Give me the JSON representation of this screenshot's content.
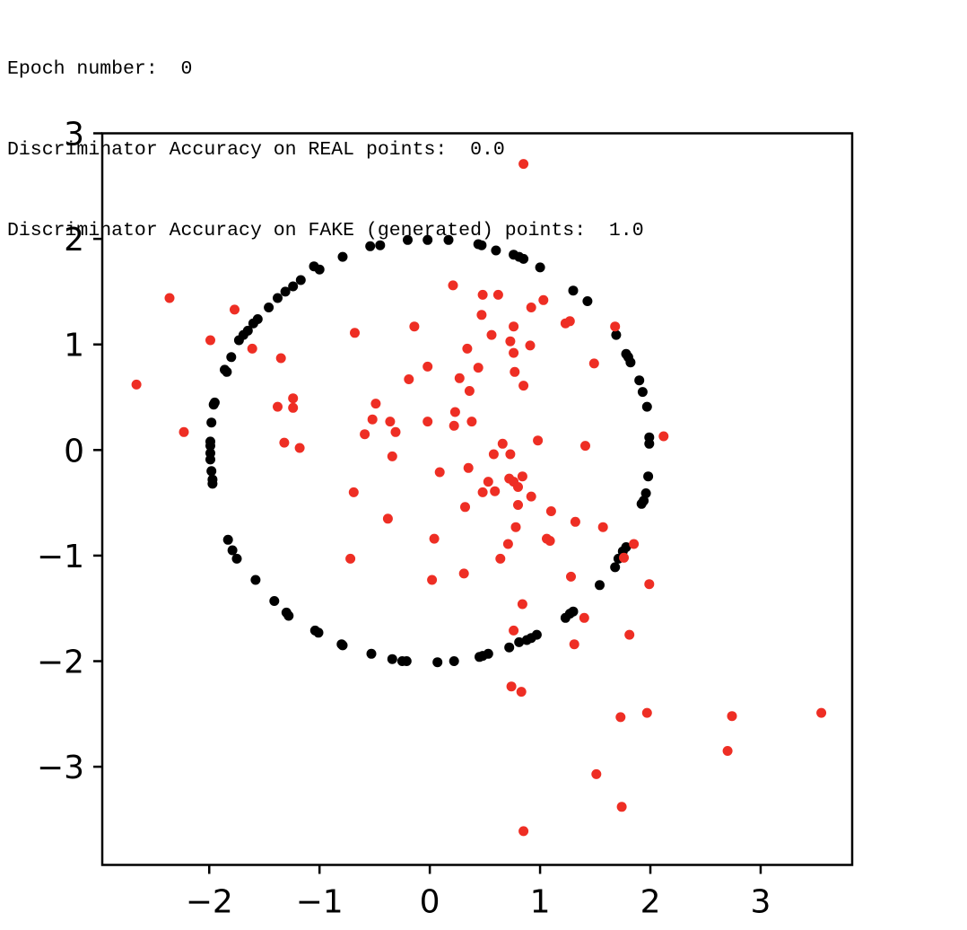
{
  "output_log": [
    "Epoch number:  0",
    "Discriminator Accuracy on REAL points:  0.0",
    "Discriminator Accuracy on FAKE (generated) points:  1.0"
  ],
  "chart_data": {
    "type": "scatter",
    "xlim": [
      -2.97,
      3.83
    ],
    "ylim": [
      -3.93,
      3.0
    ],
    "xticks": [
      -2,
      -1,
      0,
      1,
      2,
      3
    ],
    "yticks": [
      -3,
      -2,
      -1,
      0,
      1,
      2,
      3
    ],
    "xtick_labels": [
      "−2",
      "−1",
      "0",
      "1",
      "2",
      "3"
    ],
    "ytick_labels": [
      "−3",
      "−2",
      "−1",
      "0",
      "1",
      "2",
      "3"
    ],
    "grid": false,
    "series": [
      {
        "color": "#000000",
        "points": [
          [
            -0.2,
            1.99
          ],
          [
            -0.02,
            1.99
          ],
          [
            0.17,
            1.99
          ],
          [
            -0.54,
            1.93
          ],
          [
            -0.45,
            1.94
          ],
          [
            -0.79,
            1.83
          ],
          [
            -1.0,
            1.71
          ],
          [
            -1.05,
            1.74
          ],
          [
            -1.17,
            1.61
          ],
          [
            -1.24,
            1.55
          ],
          [
            -1.31,
            1.5
          ],
          [
            -1.38,
            1.44
          ],
          [
            -1.46,
            1.35
          ],
          [
            -1.56,
            1.24
          ],
          [
            -1.6,
            1.2
          ],
          [
            -1.65,
            1.13
          ],
          [
            -1.69,
            1.09
          ],
          [
            -1.73,
            1.04
          ],
          [
            -1.8,
            0.88
          ],
          [
            -1.86,
            0.76
          ],
          [
            -1.84,
            0.74
          ],
          [
            -1.95,
            0.45
          ],
          [
            -1.96,
            0.43
          ],
          [
            -1.98,
            0.26
          ],
          [
            -1.99,
            0.08
          ],
          [
            -1.99,
            0.04
          ],
          [
            -1.99,
            -0.03
          ],
          [
            -1.99,
            -0.09
          ],
          [
            -1.98,
            -0.2
          ],
          [
            -1.97,
            -0.28
          ],
          [
            -1.97,
            -0.32
          ],
          [
            -1.83,
            -0.85
          ],
          [
            -1.79,
            -0.95
          ],
          [
            -1.75,
            -1.03
          ],
          [
            -1.58,
            -1.23
          ],
          [
            -1.41,
            -1.43
          ],
          [
            -1.3,
            -1.54
          ],
          [
            -1.28,
            -1.57
          ],
          [
            -1.04,
            -1.71
          ],
          [
            -1.01,
            -1.73
          ],
          [
            -0.8,
            -1.84
          ],
          [
            -0.79,
            -1.85
          ],
          [
            -0.53,
            -1.93
          ],
          [
            -0.34,
            -1.98
          ],
          [
            -0.25,
            -2.0
          ],
          [
            -0.21,
            -2.0
          ],
          [
            0.07,
            -2.01
          ],
          [
            0.22,
            -2.0
          ],
          [
            0.45,
            -1.96
          ],
          [
            0.48,
            -1.95
          ],
          [
            0.53,
            -1.93
          ],
          [
            0.72,
            -1.87
          ],
          [
            0.81,
            -1.82
          ],
          [
            0.88,
            -1.8
          ],
          [
            0.92,
            -1.78
          ],
          [
            0.97,
            -1.75
          ],
          [
            1.23,
            -1.59
          ],
          [
            1.27,
            -1.55
          ],
          [
            1.3,
            -1.53
          ],
          [
            1.54,
            -1.28
          ],
          [
            1.68,
            -1.11
          ],
          [
            1.71,
            -1.03
          ],
          [
            1.75,
            -0.96
          ],
          [
            1.78,
            -0.92
          ],
          [
            1.92,
            -0.51
          ],
          [
            1.94,
            -0.48
          ],
          [
            1.96,
            -0.41
          ],
          [
            1.98,
            -0.25
          ],
          [
            1.99,
            0.06
          ],
          [
            1.99,
            0.12
          ],
          [
            1.97,
            0.41
          ],
          [
            1.93,
            0.55
          ],
          [
            1.9,
            0.66
          ],
          [
            1.82,
            0.83
          ],
          [
            1.8,
            0.88
          ],
          [
            1.78,
            0.91
          ],
          [
            1.69,
            1.09
          ],
          [
            1.43,
            1.41
          ],
          [
            1.3,
            1.51
          ],
          [
            1.0,
            1.73
          ],
          [
            0.85,
            1.81
          ],
          [
            0.81,
            1.83
          ],
          [
            0.76,
            1.85
          ],
          [
            0.6,
            1.89
          ],
          [
            0.47,
            1.94
          ],
          [
            0.44,
            1.95
          ]
        ]
      },
      {
        "color": "#ee2e24",
        "points": [
          [
            0.85,
            2.71
          ],
          [
            -2.36,
            1.44
          ],
          [
            -2.66,
            0.62
          ],
          [
            -1.77,
            1.33
          ],
          [
            -1.99,
            1.04
          ],
          [
            -1.61,
            0.96
          ],
          [
            -2.23,
            0.17
          ],
          [
            -1.35,
            0.87
          ],
          [
            -1.24,
            0.49
          ],
          [
            -1.24,
            0.4
          ],
          [
            -1.38,
            0.41
          ],
          [
            -1.32,
            0.07
          ],
          [
            -1.18,
            0.02
          ],
          [
            -0.68,
            1.11
          ],
          [
            -0.14,
            1.17
          ],
          [
            0.21,
            1.56
          ],
          [
            0.48,
            1.47
          ],
          [
            0.62,
            1.47
          ],
          [
            0.47,
            1.28
          ],
          [
            0.56,
            1.09
          ],
          [
            0.76,
            1.17
          ],
          [
            0.73,
            1.03
          ],
          [
            0.92,
            1.35
          ],
          [
            1.03,
            1.42
          ],
          [
            0.91,
            0.99
          ],
          [
            0.76,
            0.92
          ],
          [
            0.34,
            0.96
          ],
          [
            0.44,
            0.78
          ],
          [
            0.77,
            0.74
          ],
          [
            0.85,
            0.61
          ],
          [
            1.23,
            1.2
          ],
          [
            1.27,
            1.22
          ],
          [
            1.68,
            1.17
          ],
          [
            1.49,
            0.82
          ],
          [
            1.41,
            0.04
          ],
          [
            2.12,
            0.13
          ],
          [
            -0.02,
            0.79
          ],
          [
            -0.19,
            0.67
          ],
          [
            0.27,
            0.68
          ],
          [
            0.36,
            0.56
          ],
          [
            0.23,
            0.36
          ],
          [
            0.38,
            0.27
          ],
          [
            0.22,
            0.23
          ],
          [
            -0.49,
            0.44
          ],
          [
            -0.52,
            0.29
          ],
          [
            -0.36,
            0.27
          ],
          [
            -0.31,
            0.17
          ],
          [
            -0.59,
            0.15
          ],
          [
            -0.02,
            0.27
          ],
          [
            -0.34,
            -0.06
          ],
          [
            0.09,
            -0.21
          ],
          [
            0.35,
            -0.17
          ],
          [
            0.53,
            -0.3
          ],
          [
            0.48,
            -0.4
          ],
          [
            0.59,
            -0.39
          ],
          [
            0.58,
            -0.04
          ],
          [
            0.66,
            0.06
          ],
          [
            0.73,
            -0.04
          ],
          [
            0.98,
            0.09
          ],
          [
            0.72,
            -0.27
          ],
          [
            0.76,
            -0.3
          ],
          [
            0.84,
            -0.25
          ],
          [
            0.8,
            -0.35
          ],
          [
            0.92,
            -0.44
          ],
          [
            0.8,
            -0.52
          ],
          [
            0.32,
            -0.54
          ],
          [
            -0.69,
            -0.4
          ],
          [
            -0.38,
            -0.65
          ],
          [
            1.1,
            -0.58
          ],
          [
            1.32,
            -0.68
          ],
          [
            1.57,
            -0.73
          ],
          [
            0.78,
            -0.73
          ],
          [
            0.71,
            -0.89
          ],
          [
            1.06,
            -0.84
          ],
          [
            1.09,
            -0.86
          ],
          [
            0.04,
            -0.84
          ],
          [
            0.64,
            -1.03
          ],
          [
            -0.72,
            -1.03
          ],
          [
            1.76,
            -1.02
          ],
          [
            1.85,
            -0.89
          ],
          [
            0.02,
            -1.23
          ],
          [
            0.31,
            -1.17
          ],
          [
            1.28,
            -1.2
          ],
          [
            1.99,
            -1.27
          ],
          [
            0.84,
            -1.46
          ],
          [
            1.4,
            -1.59
          ],
          [
            0.76,
            -1.71
          ],
          [
            1.31,
            -1.84
          ],
          [
            1.81,
            -1.75
          ],
          [
            0.74,
            -2.24
          ],
          [
            0.83,
            -2.29
          ],
          [
            1.73,
            -2.53
          ],
          [
            1.97,
            -2.49
          ],
          [
            2.74,
            -2.52
          ],
          [
            3.55,
            -2.49
          ],
          [
            2.7,
            -2.85
          ],
          [
            1.51,
            -3.07
          ],
          [
            1.74,
            -3.38
          ],
          [
            0.85,
            -3.61
          ]
        ]
      }
    ]
  }
}
